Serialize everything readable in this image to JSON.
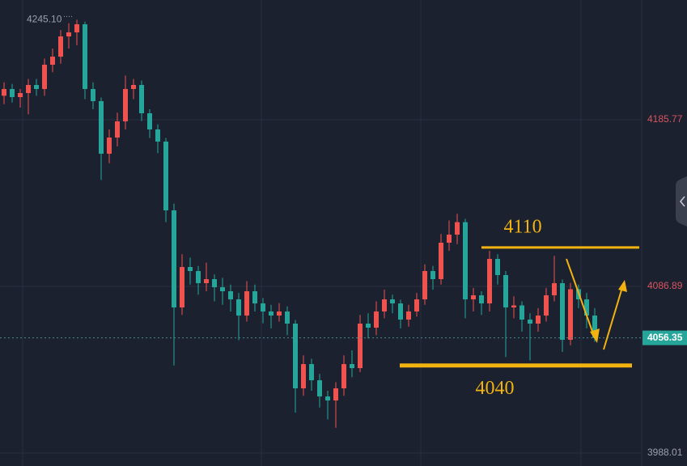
{
  "chart_data": {
    "type": "candlestick",
    "up_color": "#ef5350",
    "down_color": "#26a69a",
    "open": [
      4200.0,
      4204.0,
      4199.2,
      4201.6,
      4206.4,
      4204.0,
      4218.4,
      4223.2,
      4235.2,
      4237.6,
      4242.4,
      4204.0,
      4196.8,
      4165.6,
      4175.2,
      4184.8,
      4204.0,
      4206.4,
      4189.6,
      4180.0,
      4172.8,
      4132.0,
      4074.4,
      4098.4,
      4096.0,
      4088.8,
      4091.2,
      4086.4,
      4084.0,
      4079.2,
      4069.6,
      4084.0,
      4076.8,
      4072.0,
      4069.6,
      4072.0,
      4064.8,
      4026.4,
      4040.8,
      4031.2,
      4021.6,
      4019.2,
      4026.4,
      4040.8,
      4038.4,
      4064.8,
      4062.4,
      4072.0,
      4079.2,
      4076.8,
      4067.2,
      4072.0,
      4079.2,
      4096.0,
      4091.2,
      4112.8,
      4117.6,
      4125.0,
      4079.2,
      4081.6,
      4076.8,
      4103.2,
      4093.6,
      4074.4,
      4075.6,
      4067.2,
      4064.8,
      4069.6,
      4081.6,
      4088.8,
      4055.2,
      4085.2,
      4079.2,
      4069.6
    ],
    "high": [
      4208,
      4207,
      4204,
      4210,
      4210,
      4222,
      4228,
      4239,
      4243,
      4245.1,
      4244,
      4208,
      4199,
      4180,
      4190,
      4212,
      4210,
      4209,
      4192,
      4183,
      4175,
      4136,
      4106,
      4104,
      4099,
      4101,
      4094,
      4092,
      4088,
      4083,
      4090,
      4088,
      4080,
      4076,
      4077,
      4075,
      4067,
      4046,
      4044,
      4035,
      4025,
      4030,
      4046,
      4049,
      4070,
      4071,
      4078,
      4085,
      4082,
      4079,
      4076,
      4083,
      4100,
      4099,
      4118,
      4126,
      4130,
      4127,
      4086,
      4084,
      4108,
      4106,
      4096,
      4081,
      4078,
      4071,
      4074,
      4086,
      4105,
      4091,
      4089,
      4088,
      4083,
      4074
    ],
    "low": [
      4195,
      4196,
      4193,
      4189,
      4200,
      4200,
      4214,
      4219,
      4228,
      4230,
      4198,
      4192,
      4150,
      4160,
      4170,
      4180,
      4198,
      4185,
      4175,
      4166,
      4125,
      4040,
      4070,
      4088,
      4082,
      4084,
      4078,
      4076,
      4072,
      4055,
      4066,
      4072,
      4065,
      4062,
      4066,
      4058,
      4012,
      4022,
      4025,
      4015,
      4008,
      4003,
      4022,
      4033,
      4036,
      4056,
      4058,
      4068,
      4071,
      4062,
      4063,
      4069,
      4076,
      4085,
      4088,
      4108,
      4112,
      4068,
      4072,
      4070,
      4072,
      4088,
      4045,
      4068,
      4060,
      4043,
      4060,
      4066,
      4078,
      4048,
      4052,
      4074,
      4062,
      4054
    ],
    "close": [
      4204.0,
      4199.2,
      4201.6,
      4206.4,
      4204.0,
      4218.4,
      4223.2,
      4235.2,
      4237.6,
      4242.4,
      4204.0,
      4196.8,
      4165.6,
      4175.2,
      4184.8,
      4204.0,
      4206.4,
      4189.6,
      4180.0,
      4172.8,
      4132.0,
      4074.4,
      4098.4,
      4096.0,
      4088.8,
      4091.2,
      4086.4,
      4084.0,
      4079.2,
      4069.6,
      4084.0,
      4076.8,
      4072.0,
      4069.6,
      4072.0,
      4064.8,
      4026.4,
      4040.8,
      4031.2,
      4021.6,
      4019.2,
      4026.4,
      4040.8,
      4038.4,
      4064.8,
      4062.4,
      4072.0,
      4079.2,
      4076.8,
      4067.2,
      4072.0,
      4079.2,
      4096.0,
      4091.2,
      4112.8,
      4117.6,
      4125.0,
      4079.2,
      4081.6,
      4076.8,
      4103.2,
      4093.6,
      4074.4,
      4075.6,
      4067.2,
      4064.8,
      4069.6,
      4081.6,
      4088.8,
      4055.2,
      4085.2,
      4079.2,
      4069.6,
      4056.35
    ],
    "ylim": [
      3980.33,
      4256.81
    ],
    "yticks": [
      4185.77,
      4086.89,
      3988.01
    ],
    "grid": true,
    "high_label": {
      "value": 4245.1,
      "label": "4245.10"
    },
    "last_price": 4056.35,
    "levels": [
      4110,
      4040
    ],
    "level_color": "#f2b311"
  }
}
